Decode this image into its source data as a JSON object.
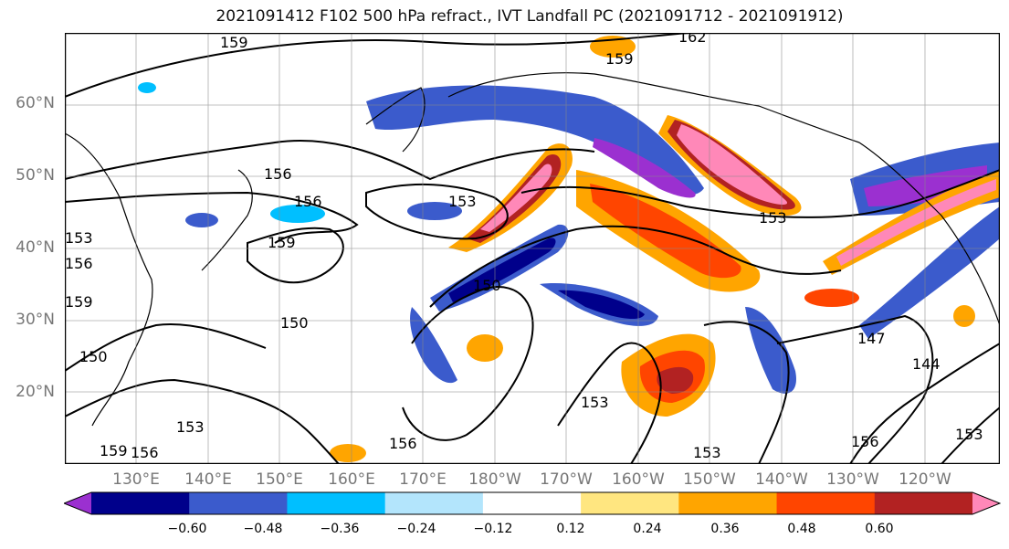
{
  "title": "2021091412 F102 500 hPa refract., IVT Landfall PC (2021091712 - 2021091912)",
  "lat_labels": [
    "60°N",
    "50°N",
    "40°N",
    "30°N",
    "20°N"
  ],
  "lon_labels": [
    "130°E",
    "140°E",
    "150°E",
    "160°E",
    "170°E",
    "180°W",
    "170°W",
    "160°W",
    "150°W",
    "140°W",
    "130°W",
    "120°W"
  ],
  "contour_labels": [
    "159",
    "162",
    "159",
    "156",
    "156",
    "153",
    "159",
    "153",
    "150",
    "150",
    "150",
    "147",
    "144",
    "153",
    "153",
    "156",
    "156",
    "159",
    "153",
    "153",
    "156",
    "159",
    "156",
    "153"
  ],
  "colorbar": {
    "colors": [
      "#9b30d0",
      "#00008b",
      "#3b5bcc",
      "#00bfff",
      "#b3e5fc",
      "#ffffff",
      "#ffe680",
      "#ffa500",
      "#ff4500",
      "#b22222",
      "#ff88b8"
    ],
    "tick_labels": [
      "−0.60",
      "−0.48",
      "−0.36",
      "−0.24",
      "−0.12",
      "0.12",
      "0.24",
      "0.36",
      "0.48",
      "0.60"
    ]
  }
}
